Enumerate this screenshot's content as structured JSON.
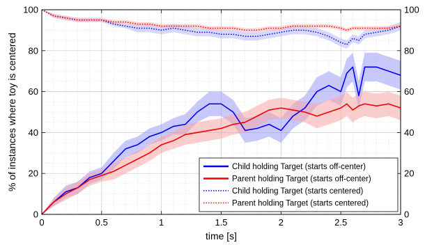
{
  "chart_data": {
    "type": "line",
    "xlabel": "time [s]",
    "ylabel": "% of instances where toy is centered",
    "xlim": [
      0,
      3
    ],
    "ylim": [
      0,
      100
    ],
    "x_ticks": [
      "0",
      "0.5",
      "1",
      "1.5",
      "2",
      "2.5",
      "3"
    ],
    "y_ticks": [
      "0",
      "20",
      "40",
      "60",
      "80",
      "100"
    ],
    "right_axis_ticks": true,
    "grid": "on (major + minor dotted)",
    "legend_position": "bottom-right",
    "x": [
      0.0,
      0.1,
      0.2,
      0.3,
      0.4,
      0.5,
      0.6,
      0.7,
      0.8,
      0.9,
      1.0,
      1.1,
      1.2,
      1.3,
      1.4,
      1.5,
      1.6,
      1.7,
      1.8,
      1.9,
      2.0,
      2.1,
      2.2,
      2.3,
      2.4,
      2.5,
      2.55,
      2.6,
      2.65,
      2.7,
      2.8,
      2.9,
      3.0
    ],
    "series": [
      {
        "name": "Child holding Target (starts off-center)",
        "color": "#0000ee",
        "line_style": "solid",
        "band_color": "#9b9bf5",
        "values": [
          0,
          6,
          11,
          13,
          18,
          20,
          26,
          32,
          34,
          38,
          40,
          43,
          44,
          50,
          54,
          54,
          50,
          41,
          42,
          44,
          41,
          48,
          52,
          60,
          63,
          60,
          69,
          72,
          58,
          72,
          72,
          70,
          68
        ],
        "band": [
          0,
          2,
          3,
          3,
          3,
          3,
          4,
          4,
          4,
          4,
          4,
          4,
          5,
          5,
          6,
          6,
          6,
          6,
          6,
          6,
          6,
          6,
          6,
          7,
          7,
          7,
          7,
          7,
          7,
          7,
          7,
          7,
          7
        ]
      },
      {
        "name": "Parent holding Target (starts off-center)",
        "color": "#ee0000",
        "line_style": "solid",
        "band_color": "#f7a5a5",
        "values": [
          0,
          6,
          10,
          13,
          17,
          19,
          21,
          24,
          27,
          30,
          34,
          36,
          39,
          40,
          41,
          42,
          44,
          45,
          48,
          51,
          52,
          51,
          50,
          48,
          50,
          52,
          54,
          51,
          53,
          54,
          53,
          54,
          52
        ],
        "band": [
          0,
          2,
          3,
          3,
          3,
          3,
          4,
          4,
          4,
          4,
          4,
          4,
          5,
          5,
          5,
          5,
          5,
          5,
          5,
          5,
          5,
          5,
          5,
          6,
          6,
          6,
          6,
          6,
          6,
          6,
          6,
          6,
          6
        ]
      },
      {
        "name": "Child holding Target (starts centered)",
        "color": "#0000ee",
        "line_style": "dotted",
        "band_color": "#b8b8f7",
        "values": [
          100,
          97,
          96,
          95,
          95,
          95,
          93,
          92,
          91,
          91,
          90,
          91,
          90,
          89,
          89,
          88,
          88,
          87,
          87,
          88,
          89,
          90,
          90,
          89,
          87,
          84,
          83,
          86,
          85,
          88,
          89,
          90,
          92
        ],
        "band": [
          0,
          1,
          1,
          1,
          1,
          1,
          1,
          1,
          2,
          2,
          2,
          2,
          2,
          2,
          2,
          2,
          2,
          2,
          2,
          2,
          2,
          2,
          2,
          2,
          2,
          2,
          2,
          2,
          2,
          2,
          2,
          2,
          2
        ]
      },
      {
        "name": "Parent holding Target (starts centered)",
        "color": "#ee0000",
        "line_style": "dotted",
        "band_color": "#f7b8b8",
        "values": [
          100,
          97,
          96,
          95,
          95,
          95,
          94,
          94,
          93,
          93,
          92,
          92,
          92,
          92,
          91,
          91,
          91,
          90,
          90,
          91,
          91,
          92,
          92,
          92,
          92,
          91,
          90,
          91,
          91,
          91,
          91,
          91,
          92
        ],
        "band": [
          0,
          1,
          1,
          1,
          1,
          1,
          1,
          1,
          1,
          1,
          1,
          1,
          1,
          1,
          1,
          1,
          1,
          1,
          1,
          1,
          1,
          1,
          1,
          1,
          1,
          1,
          1,
          1,
          1,
          1,
          1,
          1,
          1
        ]
      }
    ]
  }
}
